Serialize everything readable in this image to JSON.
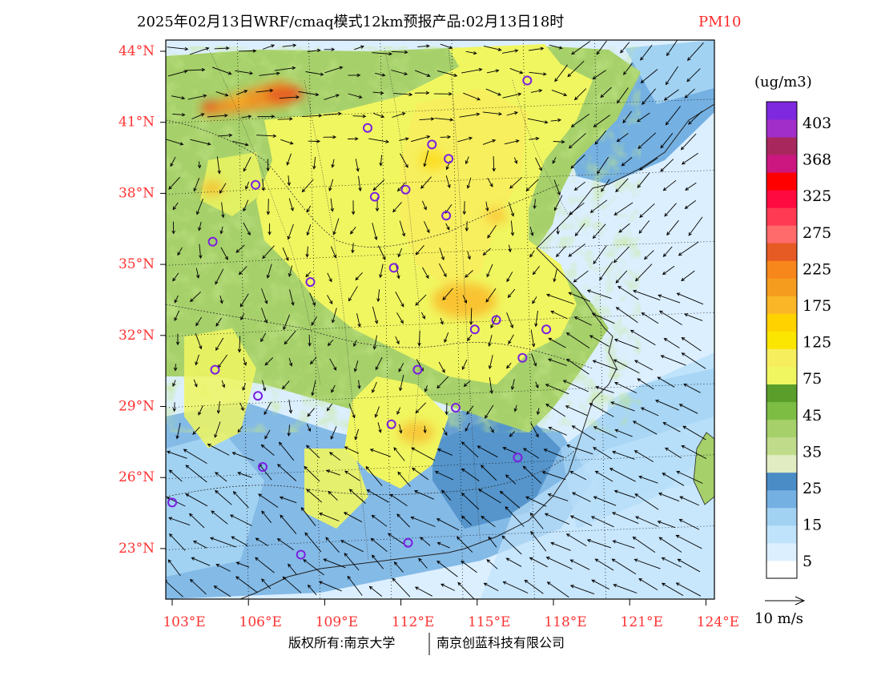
{
  "title": {
    "main": "2025年02月13日WRF/cmaq模式12km预报产品:02月13日18时",
    "pollutant": "PM10"
  },
  "map": {
    "latitude_labels": [
      "44°N",
      "41°N",
      "38°N",
      "35°N",
      "32°N",
      "29°N",
      "26°N",
      "23°N"
    ],
    "longitude_labels": [
      "103°E",
      "106°E",
      "109°E",
      "112°E",
      "115°E",
      "118°E",
      "121°E",
      "124°E"
    ]
  },
  "colorbar": {
    "unit": "(ug/m3)",
    "colors": [
      "#ffffff",
      "#dcefff",
      "#bfe3fb",
      "#a2d2f2",
      "#74b0e2",
      "#4a8cc6",
      "#e1ecc2",
      "#c0dc8a",
      "#a6d06a",
      "#7ebd43",
      "#5b9f2a",
      "#f0f660",
      "#f7ee5e",
      "#fae600",
      "#ffd200",
      "#fbb627",
      "#f59c1f",
      "#f7871a",
      "#e65a24",
      "#ff6a6a",
      "#ff3a52",
      "#ff0a40",
      "#ff0000",
      "#cc1780",
      "#a8285e",
      "#a22ec9",
      "#7e28e0"
    ],
    "labels": [
      "403",
      "368",
      "325",
      "275",
      "225",
      "175",
      "125",
      "75",
      "45",
      "35",
      "25",
      "15",
      "5"
    ]
  },
  "legend": {
    "arrow_label": "10 m/s"
  },
  "footer": {
    "left": "版权所有:南京大学",
    "right": "南京创蓝科技有限公司"
  },
  "stations": [
    {
      "lon": 117.9,
      "lat": 42.8
    },
    {
      "lon": 111.2,
      "lat": 40.8
    },
    {
      "lon": 113.9,
      "lat": 40.1
    },
    {
      "lon": 114.6,
      "lat": 39.5
    },
    {
      "lon": 106.5,
      "lat": 38.4
    },
    {
      "lon": 111.5,
      "lat": 37.9
    },
    {
      "lon": 112.8,
      "lat": 38.2
    },
    {
      "lon": 114.5,
      "lat": 37.1
    },
    {
      "lon": 104.7,
      "lat": 36.0
    },
    {
      "lon": 112.3,
      "lat": 34.9
    },
    {
      "lon": 108.8,
      "lat": 34.3
    },
    {
      "lon": 116.6,
      "lat": 32.7
    },
    {
      "lon": 115.7,
      "lat": 32.3
    },
    {
      "lon": 118.7,
      "lat": 32.3
    },
    {
      "lon": 117.7,
      "lat": 31.1
    },
    {
      "lon": 104.8,
      "lat": 30.6
    },
    {
      "lon": 113.3,
      "lat": 30.6
    },
    {
      "lon": 106.6,
      "lat": 29.5
    },
    {
      "lon": 114.9,
      "lat": 29.0
    },
    {
      "lon": 112.2,
      "lat": 28.3
    },
    {
      "lon": 117.5,
      "lat": 26.9
    },
    {
      "lon": 106.8,
      "lat": 26.5
    },
    {
      "lon": 103.0,
      "lat": 25.0
    },
    {
      "lon": 112.9,
      "lat": 23.3
    },
    {
      "lon": 108.4,
      "lat": 22.8
    }
  ]
}
